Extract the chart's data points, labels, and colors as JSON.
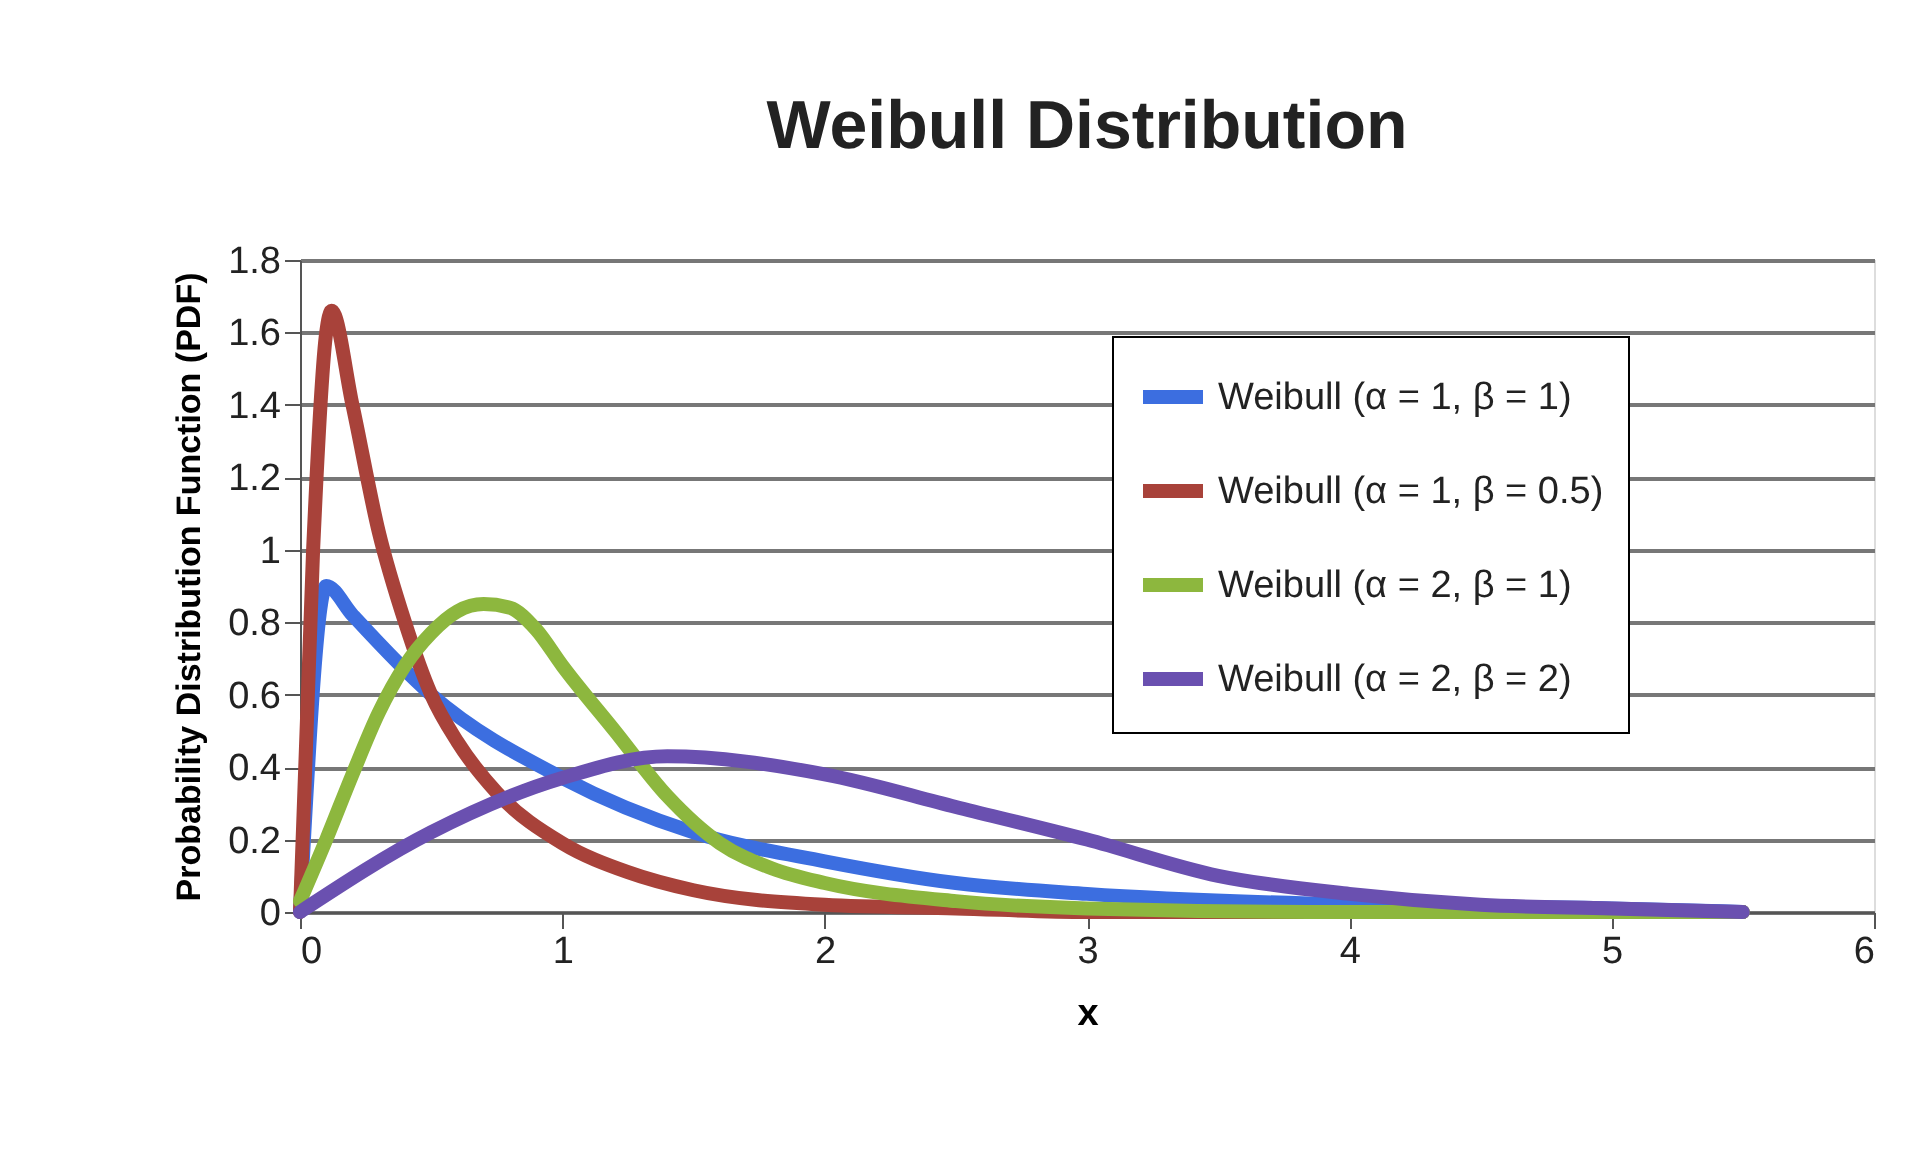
{
  "chart_data": {
    "type": "line",
    "title": "Weibull Distribution",
    "xlabel": "x",
    "ylabel": "Probability Distribution Function (PDF)",
    "xlim": [
      0,
      6
    ],
    "xticks": [
      0,
      1,
      2,
      3,
      4,
      5,
      6
    ],
    "ylim": [
      0,
      1.8
    ],
    "yticks": [
      0,
      0.2,
      0.4,
      0.6,
      0.8,
      1,
      1.2,
      1.4,
      1.6,
      1.8
    ],
    "grid": "y",
    "legend": "top right",
    "marker": "none",
    "line_style": "solid",
    "series": [
      {
        "name": "Weibull (α = 1, β = 1)",
        "color": "#3c6ee0",
        "x": [
          0,
          0.1,
          0.2,
          0.5,
          1,
          1.5,
          2,
          2.5,
          3,
          4,
          5,
          5.5
        ],
        "values": [
          0,
          0.9,
          0.82,
          0.6,
          0.37,
          0.22,
          0.14,
          0.08,
          0.05,
          0.02,
          0.01,
          0
        ]
      },
      {
        "name": "Weibull (α = 1, β = 0.5)",
        "color": "#a8423a",
        "x": [
          0,
          0.05,
          0.1,
          0.12,
          0.2,
          0.3,
          0.4,
          0.5,
          0.6,
          0.75,
          1,
          1.25,
          1.5,
          2,
          2.5,
          3,
          4,
          5,
          5.5
        ],
        "values": [
          0,
          1.0,
          1.6,
          1.66,
          1.4,
          1.05,
          0.8,
          0.6,
          0.47,
          0.33,
          0.19,
          0.11,
          0.06,
          0.02,
          0.01,
          0,
          0,
          0,
          0
        ]
      },
      {
        "name": "Weibull (α = 2, β = 1)",
        "color": "#8db73e",
        "x": [
          0,
          0.1,
          0.2,
          0.3,
          0.4,
          0.5,
          0.6,
          0.7,
          0.8,
          0.9,
          1,
          1.2,
          1.4,
          1.6,
          1.8,
          2,
          2.5,
          3,
          4,
          5,
          5.5
        ],
        "values": [
          0.03,
          0.2,
          0.38,
          0.55,
          0.68,
          0.77,
          0.83,
          0.85,
          0.84,
          0.78,
          0.68,
          0.5,
          0.32,
          0.19,
          0.12,
          0.08,
          0.03,
          0.01,
          0,
          0,
          0
        ]
      },
      {
        "name": "Weibull (α = 2, β = 2)",
        "color": "#6a50b0",
        "x": [
          0,
          0.5,
          1,
          1.4,
          2,
          2.5,
          3,
          3.5,
          4,
          4.5,
          5,
          5.5
        ],
        "values": [
          0,
          0.22,
          0.37,
          0.43,
          0.38,
          0.29,
          0.2,
          0.1,
          0.05,
          0.02,
          0.01,
          0
        ]
      }
    ]
  }
}
